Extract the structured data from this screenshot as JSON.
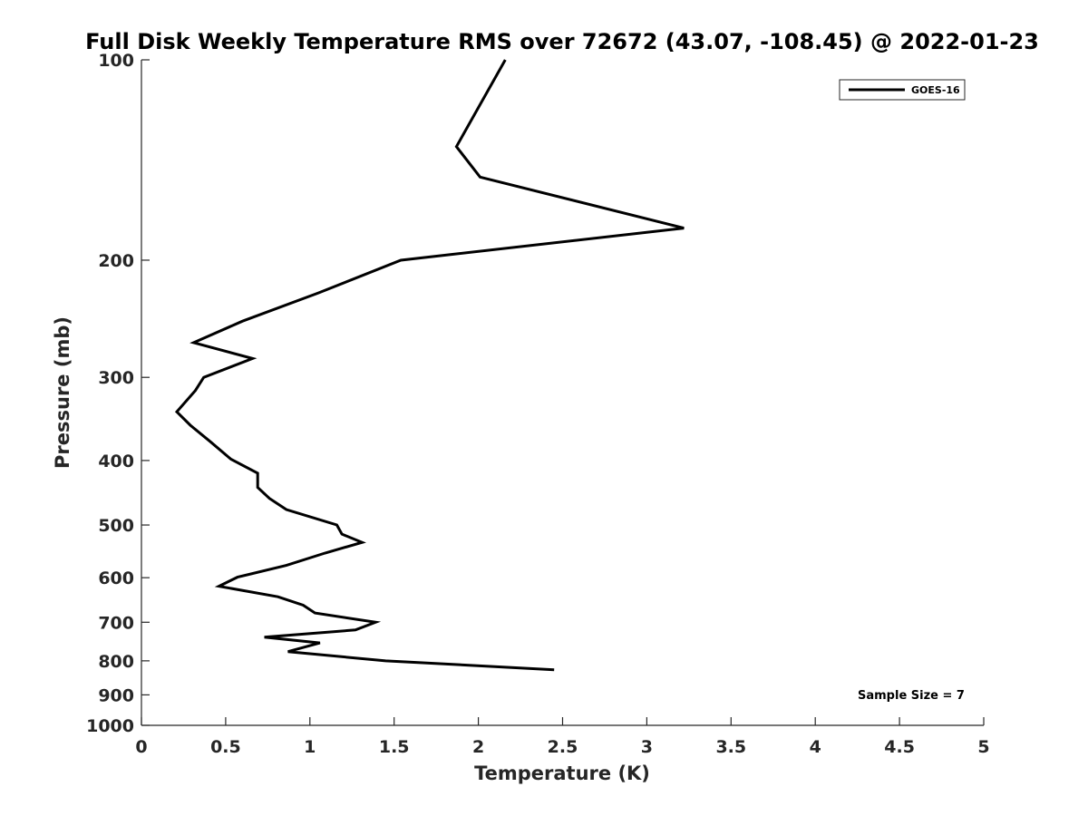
{
  "chart_data": {
    "type": "line",
    "title": "Full Disk Weekly Temperature RMS over 72672 (43.07, -108.45) @ 2022-01-23",
    "xlabel": "Temperature (K)",
    "ylabel": "Pressure (mb)",
    "xlim": [
      0,
      5
    ],
    "ylim": [
      100,
      1000
    ],
    "y_scale": "log",
    "y_reversed": true,
    "x_ticks": [
      "0",
      "0.5",
      "1",
      "1.5",
      "2",
      "2.5",
      "3",
      "3.5",
      "4",
      "4.5",
      "5"
    ],
    "y_ticks": [
      "100",
      "200",
      "300",
      "400",
      "500",
      "600",
      "700",
      "800",
      "900",
      "1000"
    ],
    "grid": false,
    "legend_position": "top-right",
    "annotation": "Sample Size = 7",
    "series": [
      {
        "name": "GOES-16",
        "color": "#000000",
        "x": [
          2.16,
          1.87,
          2.01,
          3.22,
          1.54,
          1.05,
          0.6,
          0.31,
          0.66,
          0.37,
          0.32,
          0.21,
          0.29,
          0.41,
          0.53,
          0.69,
          0.69,
          0.76,
          0.86,
          1.16,
          1.19,
          1.31,
          1.09,
          0.86,
          0.57,
          0.46,
          0.81,
          0.96,
          1.03,
          1.39,
          1.27,
          0.73,
          1.06,
          0.87,
          1.45,
          2.45
        ],
        "y": [
          100,
          135,
          150,
          179,
          200,
          224,
          247,
          266,
          281,
          300,
          314,
          338,
          354,
          375,
          398,
          418,
          439,
          456,
          474,
          500,
          516,
          531,
          551,
          575,
          599,
          618,
          641,
          660,
          678,
          700,
          719,
          737,
          752,
          775,
          800,
          825
        ]
      }
    ]
  }
}
